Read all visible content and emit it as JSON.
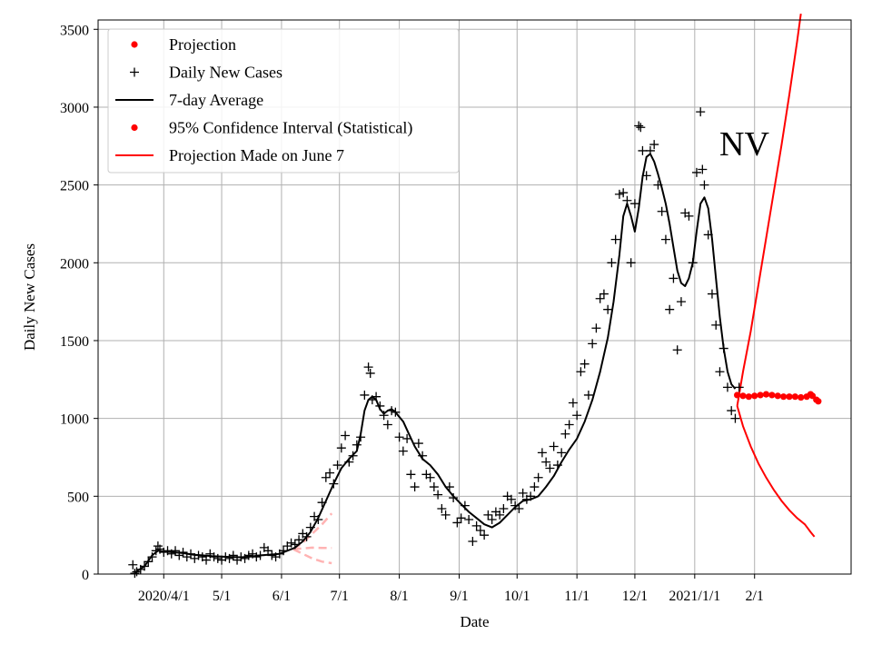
{
  "chart_data": {
    "type": "line",
    "state": "NV",
    "xlabel": "Date",
    "ylabel": "Daily New Cases",
    "ylim": [
      0,
      3560
    ],
    "y_ticks": [
      0,
      500,
      1000,
      1500,
      2000,
      2500,
      3000,
      3500
    ],
    "x_ticks": [
      {
        "day": 0,
        "label": "2020/4/1"
      },
      {
        "day": 30,
        "label": "5/1"
      },
      {
        "day": 61,
        "label": "6/1"
      },
      {
        "day": 91,
        "label": "7/1"
      },
      {
        "day": 122,
        "label": "8/1"
      },
      {
        "day": 153,
        "label": "9/1"
      },
      {
        "day": 183,
        "label": "10/1"
      },
      {
        "day": 214,
        "label": "11/1"
      },
      {
        "day": 244,
        "label": "12/1"
      },
      {
        "day": 275,
        "label": "2021/1/1"
      },
      {
        "day": 306,
        "label": "2/1"
      }
    ],
    "x_unit": "days since 2020-04-01",
    "xlim": [
      -34,
      356
    ],
    "grid": true,
    "legend": {
      "position": "top-left",
      "entries": [
        {
          "label": "Projection",
          "marker": "dot",
          "color": "#ff0000"
        },
        {
          "label": "Daily New Cases",
          "marker": "plus",
          "color": "#000000"
        },
        {
          "label": "7-day Average",
          "marker": "line",
          "color": "#000000"
        },
        {
          "label": "95% Confidence Interval (Statistical)",
          "marker": "dot",
          "color": "#ff0000"
        },
        {
          "label": "Projection Made on June 7",
          "marker": "line",
          "color": "#ff0000"
        }
      ]
    },
    "seven_day_average": [
      [
        -15,
        10
      ],
      [
        -10,
        50
      ],
      [
        -6,
        120
      ],
      [
        -3,
        150
      ],
      [
        0,
        145
      ],
      [
        5,
        140
      ],
      [
        10,
        135
      ],
      [
        15,
        125
      ],
      [
        20,
        120
      ],
      [
        25,
        115
      ],
      [
        30,
        112
      ],
      [
        35,
        110
      ],
      [
        40,
        108
      ],
      [
        45,
        112
      ],
      [
        50,
        120
      ],
      [
        55,
        125
      ],
      [
        60,
        130
      ],
      [
        64,
        150
      ],
      [
        68,
        170
      ],
      [
        72,
        210
      ],
      [
        76,
        270
      ],
      [
        80,
        360
      ],
      [
        84,
        470
      ],
      [
        88,
        580
      ],
      [
        92,
        680
      ],
      [
        96,
        740
      ],
      [
        100,
        790
      ],
      [
        102,
        900
      ],
      [
        104,
        1050
      ],
      [
        106,
        1120
      ],
      [
        108,
        1140
      ],
      [
        110,
        1120
      ],
      [
        112,
        1060
      ],
      [
        114,
        1030
      ],
      [
        116,
        1050
      ],
      [
        118,
        1060
      ],
      [
        120,
        1040
      ],
      [
        124,
        980
      ],
      [
        127,
        900
      ],
      [
        130,
        820
      ],
      [
        134,
        740
      ],
      [
        138,
        700
      ],
      [
        142,
        640
      ],
      [
        146,
        560
      ],
      [
        150,
        500
      ],
      [
        154,
        450
      ],
      [
        158,
        400
      ],
      [
        162,
        360
      ],
      [
        166,
        320
      ],
      [
        170,
        300
      ],
      [
        174,
        330
      ],
      [
        178,
        380
      ],
      [
        182,
        430
      ],
      [
        186,
        470
      ],
      [
        190,
        480
      ],
      [
        194,
        500
      ],
      [
        198,
        560
      ],
      [
        202,
        630
      ],
      [
        206,
        720
      ],
      [
        210,
        800
      ],
      [
        214,
        870
      ],
      [
        218,
        980
      ],
      [
        222,
        1120
      ],
      [
        226,
        1300
      ],
      [
        230,
        1520
      ],
      [
        233,
        1750
      ],
      [
        236,
        2050
      ],
      [
        238,
        2300
      ],
      [
        240,
        2380
      ],
      [
        242,
        2300
      ],
      [
        244,
        2200
      ],
      [
        246,
        2350
      ],
      [
        248,
        2550
      ],
      [
        250,
        2680
      ],
      [
        252,
        2700
      ],
      [
        254,
        2650
      ],
      [
        256,
        2570
      ],
      [
        258,
        2480
      ],
      [
        260,
        2380
      ],
      [
        262,
        2250
      ],
      [
        264,
        2100
      ],
      [
        266,
        1950
      ],
      [
        268,
        1870
      ],
      [
        270,
        1850
      ],
      [
        272,
        1900
      ],
      [
        274,
        2000
      ],
      [
        276,
        2200
      ],
      [
        278,
        2380
      ],
      [
        280,
        2420
      ],
      [
        282,
        2350
      ],
      [
        284,
        2150
      ],
      [
        286,
        1900
      ],
      [
        288,
        1650
      ],
      [
        290,
        1450
      ],
      [
        292,
        1300
      ],
      [
        294,
        1220
      ],
      [
        296,
        1190
      ]
    ],
    "daily_new_cases": [
      [
        -16,
        60
      ],
      [
        -15,
        5
      ],
      [
        -14,
        15
      ],
      [
        -12,
        30
      ],
      [
        -10,
        50
      ],
      [
        -8,
        80
      ],
      [
        -6,
        110
      ],
      [
        -4,
        150
      ],
      [
        -3,
        180
      ],
      [
        -2,
        160
      ],
      [
        0,
        140
      ],
      [
        2,
        150
      ],
      [
        4,
        130
      ],
      [
        6,
        150
      ],
      [
        8,
        120
      ],
      [
        10,
        140
      ],
      [
        12,
        110
      ],
      [
        14,
        130
      ],
      [
        16,
        100
      ],
      [
        18,
        120
      ],
      [
        20,
        110
      ],
      [
        22,
        90
      ],
      [
        24,
        130
      ],
      [
        26,
        110
      ],
      [
        28,
        100
      ],
      [
        30,
        90
      ],
      [
        32,
        110
      ],
      [
        34,
        100
      ],
      [
        36,
        120
      ],
      [
        38,
        90
      ],
      [
        40,
        110
      ],
      [
        42,
        100
      ],
      [
        44,
        120
      ],
      [
        46,
        130
      ],
      [
        48,
        110
      ],
      [
        50,
        120
      ],
      [
        52,
        170
      ],
      [
        54,
        150
      ],
      [
        56,
        120
      ],
      [
        58,
        110
      ],
      [
        60,
        130
      ],
      [
        62,
        150
      ],
      [
        64,
        180
      ],
      [
        66,
        200
      ],
      [
        68,
        190
      ],
      [
        70,
        220
      ],
      [
        72,
        260
      ],
      [
        74,
        240
      ],
      [
        76,
        300
      ],
      [
        78,
        370
      ],
      [
        80,
        350
      ],
      [
        82,
        460
      ],
      [
        84,
        620
      ],
      [
        86,
        650
      ],
      [
        88,
        580
      ],
      [
        90,
        700
      ],
      [
        92,
        810
      ],
      [
        94,
        890
      ],
      [
        96,
        720
      ],
      [
        98,
        760
      ],
      [
        100,
        830
      ],
      [
        102,
        880
      ],
      [
        104,
        1150
      ],
      [
        106,
        1330
      ],
      [
        107,
        1290
      ],
      [
        108,
        1120
      ],
      [
        110,
        1140
      ],
      [
        112,
        1080
      ],
      [
        114,
        1020
      ],
      [
        116,
        960
      ],
      [
        118,
        1050
      ],
      [
        120,
        1040
      ],
      [
        122,
        880
      ],
      [
        124,
        790
      ],
      [
        126,
        870
      ],
      [
        128,
        640
      ],
      [
        130,
        560
      ],
      [
        132,
        840
      ],
      [
        134,
        760
      ],
      [
        136,
        640
      ],
      [
        138,
        620
      ],
      [
        140,
        560
      ],
      [
        142,
        510
      ],
      [
        144,
        420
      ],
      [
        146,
        380
      ],
      [
        148,
        560
      ],
      [
        150,
        490
      ],
      [
        152,
        330
      ],
      [
        154,
        360
      ],
      [
        156,
        440
      ],
      [
        158,
        350
      ],
      [
        160,
        210
      ],
      [
        162,
        310
      ],
      [
        164,
        280
      ],
      [
        166,
        250
      ],
      [
        168,
        380
      ],
      [
        170,
        350
      ],
      [
        172,
        400
      ],
      [
        174,
        380
      ],
      [
        176,
        420
      ],
      [
        178,
        500
      ],
      [
        180,
        480
      ],
      [
        182,
        440
      ],
      [
        184,
        420
      ],
      [
        186,
        520
      ],
      [
        188,
        480
      ],
      [
        190,
        500
      ],
      [
        192,
        560
      ],
      [
        194,
        620
      ],
      [
        196,
        780
      ],
      [
        198,
        720
      ],
      [
        200,
        680
      ],
      [
        202,
        820
      ],
      [
        204,
        700
      ],
      [
        206,
        780
      ],
      [
        208,
        900
      ],
      [
        210,
        960
      ],
      [
        212,
        1100
      ],
      [
        214,
        1020
      ],
      [
        216,
        1300
      ],
      [
        218,
        1350
      ],
      [
        220,
        1150
      ],
      [
        222,
        1480
      ],
      [
        224,
        1580
      ],
      [
        226,
        1770
      ],
      [
        228,
        1800
      ],
      [
        230,
        1700
      ],
      [
        232,
        2000
      ],
      [
        234,
        2150
      ],
      [
        236,
        2440
      ],
      [
        238,
        2450
      ],
      [
        240,
        2400
      ],
      [
        242,
        2000
      ],
      [
        244,
        2380
      ],
      [
        246,
        2880
      ],
      [
        247,
        2870
      ],
      [
        248,
        2720
      ],
      [
        250,
        2560
      ],
      [
        252,
        2720
      ],
      [
        254,
        2760
      ],
      [
        256,
        2500
      ],
      [
        258,
        2330
      ],
      [
        260,
        2150
      ],
      [
        262,
        1700
      ],
      [
        264,
        1900
      ],
      [
        266,
        1440
      ],
      [
        268,
        1750
      ],
      [
        270,
        2320
      ],
      [
        272,
        2300
      ],
      [
        274,
        2000
      ],
      [
        276,
        2580
      ],
      [
        278,
        2970
      ],
      [
        279,
        2600
      ],
      [
        280,
        2500
      ],
      [
        282,
        2180
      ],
      [
        284,
        1800
      ],
      [
        286,
        1600
      ],
      [
        288,
        1300
      ],
      [
        290,
        1450
      ],
      [
        292,
        1200
      ],
      [
        294,
        1050
      ],
      [
        296,
        1000
      ],
      [
        298,
        1200
      ]
    ],
    "projection": [
      [
        297,
        1150
      ],
      [
        300,
        1145
      ],
      [
        303,
        1140
      ],
      [
        306,
        1145
      ],
      [
        309,
        1150
      ],
      [
        312,
        1155
      ],
      [
        315,
        1150
      ],
      [
        318,
        1145
      ],
      [
        321,
        1140
      ],
      [
        324,
        1140
      ],
      [
        327,
        1140
      ],
      [
        330,
        1135
      ],
      [
        333,
        1140
      ],
      [
        335,
        1155
      ],
      [
        336,
        1145
      ],
      [
        338,
        1120
      ],
      [
        339,
        1110
      ]
    ],
    "projection_upper_bound": [
      [
        297,
        1080
      ],
      [
        300,
        1300
      ],
      [
        304,
        1560
      ],
      [
        308,
        1860
      ],
      [
        312,
        2160
      ],
      [
        316,
        2460
      ],
      [
        320,
        2760
      ],
      [
        324,
        3080
      ],
      [
        328,
        3420
      ],
      [
        330,
        3600
      ]
    ],
    "projection_lower_bound": [
      [
        297,
        1080
      ],
      [
        300,
        950
      ],
      [
        304,
        820
      ],
      [
        308,
        710
      ],
      [
        312,
        620
      ],
      [
        316,
        540
      ],
      [
        320,
        470
      ],
      [
        324,
        410
      ],
      [
        328,
        360
      ],
      [
        332,
        320
      ],
      [
        335,
        270
      ],
      [
        337,
        240
      ]
    ],
    "projection_made_on_june_7": {
      "upper": [
        [
          67,
          160
        ],
        [
          72,
          200
        ],
        [
          77,
          260
        ],
        [
          82,
          320
        ],
        [
          87,
          390
        ]
      ],
      "middle": [
        [
          67,
          160
        ],
        [
          72,
          165
        ],
        [
          77,
          170
        ],
        [
          82,
          168
        ],
        [
          87,
          168
        ]
      ],
      "lower": [
        [
          67,
          160
        ],
        [
          72,
          130
        ],
        [
          77,
          100
        ],
        [
          82,
          80
        ],
        [
          87,
          70
        ]
      ]
    }
  }
}
